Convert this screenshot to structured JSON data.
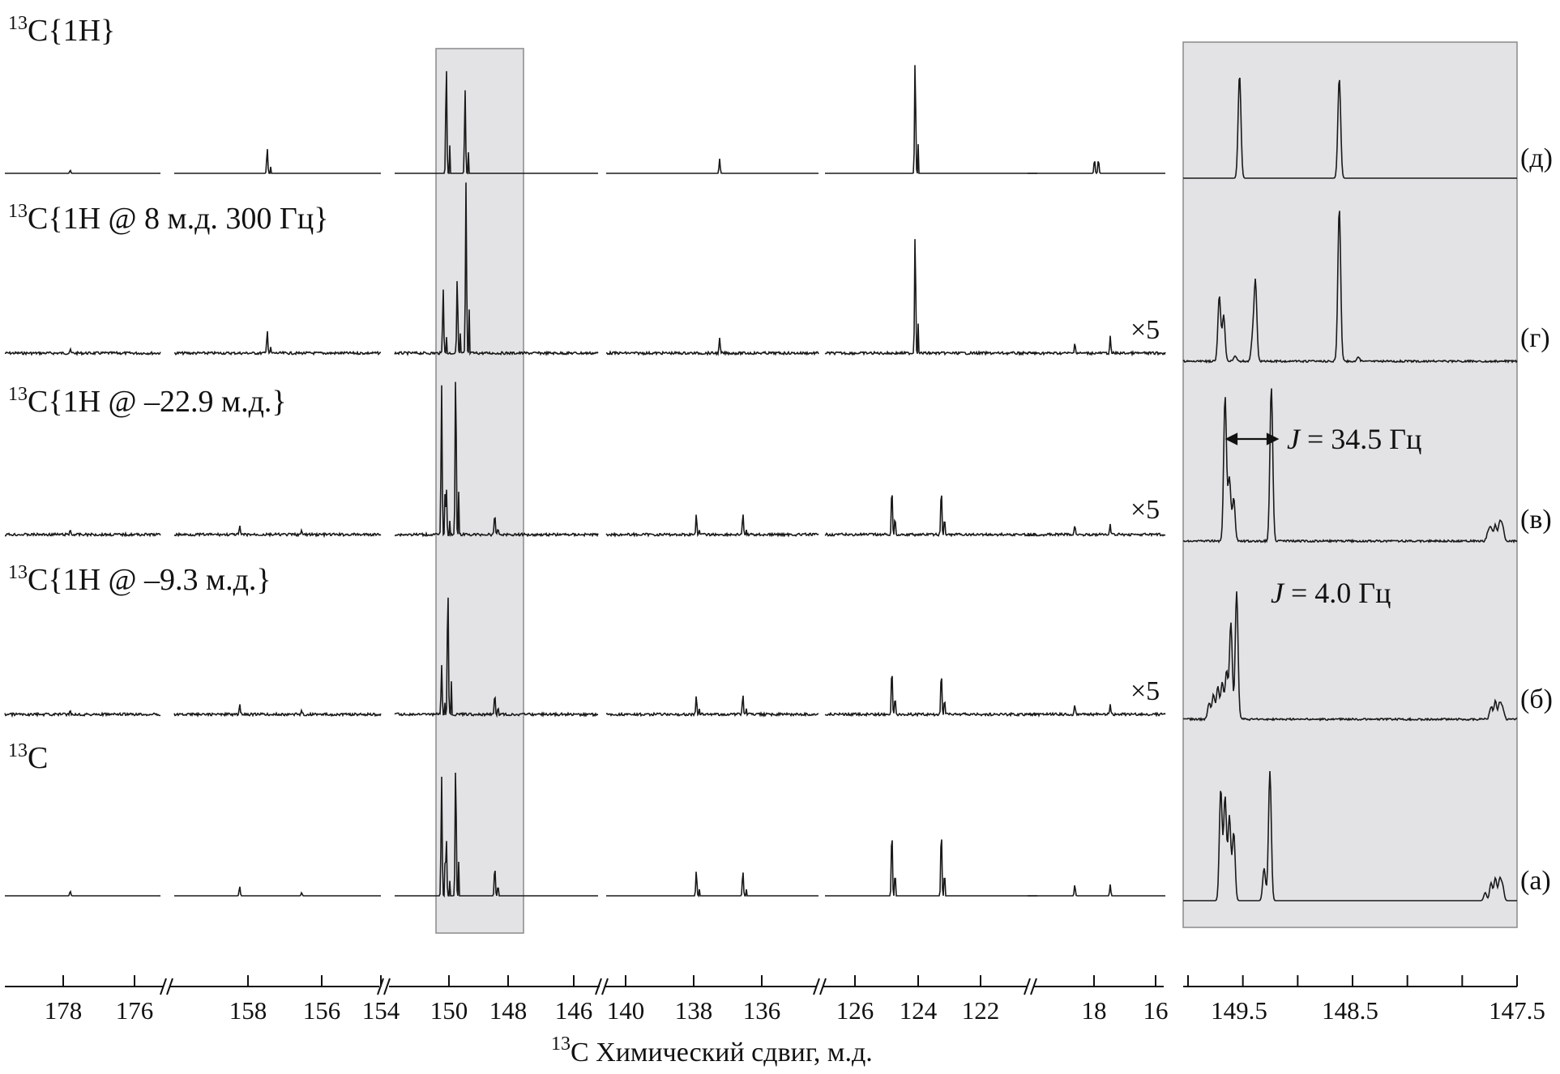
{
  "chart_data": {
    "type": "line",
    "title": "",
    "xlabel_sup": "13",
    "xlabel": "C Химический сдвиг, м.д.",
    "ylabel": "",
    "grid": false,
    "series": [
      {
        "tag": "(д)",
        "label_sup": "13",
        "label": "C{1H}",
        "scale": ""
      },
      {
        "tag": "(г)",
        "label_sup": "13",
        "label": "C{1H @ 8 м.д. 300 Гц}",
        "scale": "×5"
      },
      {
        "tag": "(в)",
        "label_sup": "13",
        "label": "C{1H @ –22.9 м.д.}",
        "scale": "×5"
      },
      {
        "tag": "(б)",
        "label_sup": "13",
        "label": "C{1H @ –9.3 м.д.}",
        "scale": "×5"
      },
      {
        "tag": "(а)",
        "label_sup": "13",
        "label": "C",
        "scale": ""
      }
    ],
    "axis_segments": [
      {
        "range": [
          179.5,
          174.5
        ],
        "ticks": [
          "178",
          "176"
        ]
      },
      {
        "range": [
          159.5,
          153.5
        ],
        "ticks": [
          "158",
          "156",
          "154"
        ]
      },
      {
        "range": [
          151,
          144.5
        ],
        "ticks": [
          "150",
          "148",
          "146"
        ]
      },
      {
        "range": [
          140.8,
          133.5
        ],
        "ticks": [
          "140",
          "138",
          "136"
        ]
      },
      {
        "range": [
          127.3,
          120
        ],
        "ticks": [
          "126",
          "124",
          "122"
        ]
      },
      {
        "range": [
          19.3,
          15.8
        ],
        "ticks": [
          "18",
          "16"
        ]
      }
    ],
    "inset": {
      "range": [
        149.81,
        147.5
      ],
      "ticks": [
        "149.5",
        "148.5",
        "147.5"
      ],
      "annotations": [
        {
          "text_italic": "J",
          "text": " = 34.5 Гц",
          "trace": "(в)"
        },
        {
          "text_italic": "J",
          "text": " = 4.0 Гц",
          "trace": "(б)"
        }
      ]
    },
    "peaks": {
      "d": [
        177.4,
        156.8,
        149.35,
        148.75,
        136.9,
        124.2,
        17.6,
        17.5
      ],
      "g": [
        177.4,
        156.8,
        149.45,
        149.0,
        148.72,
        136.9,
        124.2,
        18.1,
        17.2
      ],
      "v": [
        177.4,
        157.6,
        155.8,
        149.5,
        149.35,
        149.05,
        147.8,
        137.7,
        136.1,
        125.0,
        123.3,
        18.1,
        17.2
      ],
      "b": [
        177.4,
        157.6,
        155.8,
        149.5,
        149.3,
        147.8,
        137.7,
        136.1,
        125.0,
        123.3,
        18.1,
        17.2
      ],
      "a": [
        177.4,
        157.6,
        155.8,
        149.5,
        149.35,
        149.05,
        147.8,
        137.7,
        136.1,
        125.0,
        123.3,
        18.1,
        17.2
      ]
    }
  }
}
